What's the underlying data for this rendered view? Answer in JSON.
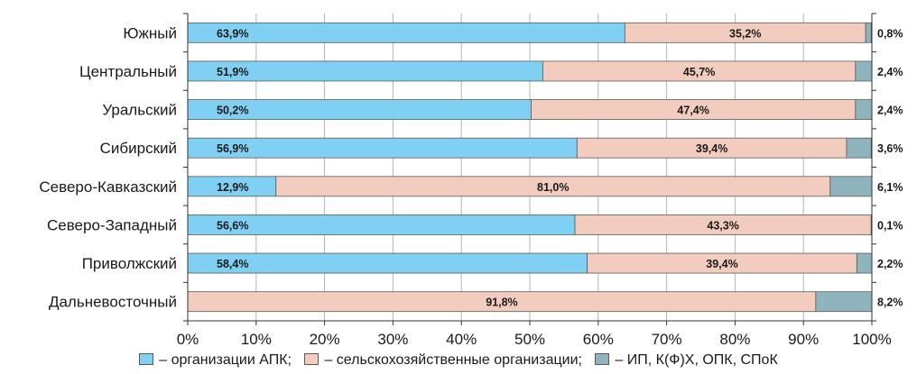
{
  "colors": {
    "apk": "#7fd0f2",
    "agri": "#f2cdbf",
    "ip": "#8fb4bd",
    "outline": "#5a5a5a",
    "grid": "#b5b5b5"
  },
  "legend": {
    "items": [
      {
        "label": "– организации АПК;"
      },
      {
        "label": "– сельскохозяйственные организации;"
      },
      {
        "label": "– ИП, К(Ф)Х, ОПК, СПоК"
      }
    ]
  },
  "chart_data": {
    "type": "bar",
    "orientation": "horizontal",
    "stacked": true,
    "categories": [
      "Южный",
      "Центральный",
      "Уральский",
      "Сибирский",
      "Северо-Кавказский",
      "Северо-Западный",
      "Приволжский",
      "Дальневосточный"
    ],
    "series": [
      {
        "name": "организации АПК",
        "values": [
          63.9,
          51.9,
          50.2,
          56.9,
          12.9,
          56.6,
          58.4,
          0
        ],
        "labels": [
          "63,9%",
          "51,9%",
          "50,2%",
          "56,9%",
          "12,9%",
          "56,6%",
          "58,4%",
          ""
        ]
      },
      {
        "name": "сельскохозяйственные организации",
        "values": [
          35.2,
          45.7,
          47.4,
          39.4,
          81.0,
          43.3,
          39.4,
          91.8
        ],
        "labels": [
          "35,2%",
          "45,7%",
          "47,4%",
          "39,4%",
          "81,0%",
          "43,3%",
          "39,4%",
          "91,8%"
        ]
      },
      {
        "name": "ИП, К(Ф)Х, ОПК, СПоК",
        "values": [
          0.8,
          2.4,
          2.4,
          3.6,
          6.1,
          0.1,
          2.2,
          8.2
        ],
        "labels": [
          "0,8%",
          "2,4%",
          "2,4%",
          "3,6%",
          "6,1%",
          "0,1%",
          "2,2%",
          "8,2%"
        ]
      }
    ],
    "xlim": [
      0,
      100
    ],
    "xticks": [
      "0%",
      "10%",
      "20%",
      "30%",
      "40%",
      "50%",
      "60%",
      "70%",
      "80%",
      "90%",
      "100%"
    ],
    "grid": true,
    "legend_position": "bottom"
  }
}
